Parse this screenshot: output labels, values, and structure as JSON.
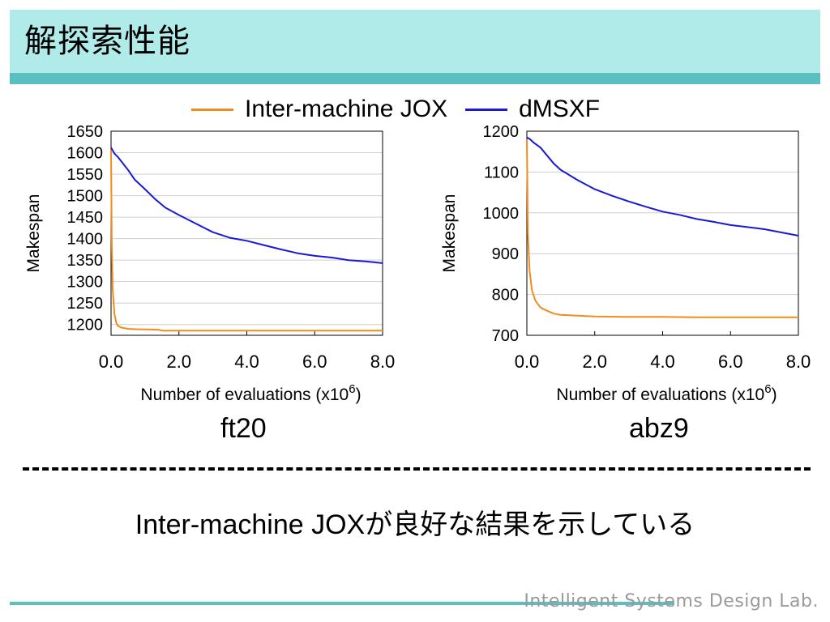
{
  "slide": {
    "title": "解探索性能",
    "conclusion": "Inter-machine JOXが良好な結果を示している",
    "footer": "Intelligent Systems Design Lab."
  },
  "legend": {
    "items": [
      {
        "label": "Inter-machine JOX",
        "color": "#f28c1c"
      },
      {
        "label": "dMSXF",
        "color": "#1a1ad6"
      }
    ]
  },
  "chart_data": [
    {
      "type": "line",
      "dataset_label": "ft20",
      "xlabel": "Number of evaluations (x10",
      "xlabel_sup": "6",
      "xlabel_tail": ")",
      "ylabel": "Makespan",
      "xlim": [
        0,
        8
      ],
      "ylim": [
        1175,
        1650
      ],
      "xticks": [
        "0.0",
        "2.0",
        "4.0",
        "6.0",
        "8.0"
      ],
      "xtick_values": [
        0,
        2,
        4,
        6,
        8
      ],
      "yticks": [
        "1200",
        "1250",
        "1300",
        "1350",
        "1400",
        "1450",
        "1500",
        "1550",
        "1600",
        "1650"
      ],
      "ytick_values": [
        1200,
        1250,
        1300,
        1350,
        1400,
        1450,
        1500,
        1550,
        1600,
        1650
      ],
      "grid": "horizontal",
      "series": [
        {
          "name": "Inter-machine JOX",
          "color": "#f28c1c",
          "x": [
            0,
            0.02,
            0.05,
            0.1,
            0.15,
            0.2,
            0.3,
            0.5,
            0.8,
            1.0,
            1.4,
            1.5,
            2.0,
            3.0,
            4.0,
            5.0,
            6.0,
            7.0,
            8.0
          ],
          "y": [
            1610,
            1400,
            1280,
            1225,
            1205,
            1197,
            1193,
            1190,
            1189,
            1189,
            1188,
            1186,
            1186,
            1186,
            1186,
            1186,
            1186,
            1186,
            1186
          ]
        },
        {
          "name": "dMSXF",
          "color": "#1a1ad6",
          "x": [
            0,
            0.05,
            0.1,
            0.2,
            0.3,
            0.5,
            0.7,
            1.0,
            1.3,
            1.6,
            2.0,
            2.5,
            3.0,
            3.5,
            4.0,
            4.5,
            5.0,
            5.5,
            6.0,
            6.5,
            7.0,
            7.5,
            8.0
          ],
          "y": [
            1612,
            1605,
            1598,
            1590,
            1580,
            1560,
            1537,
            1515,
            1492,
            1472,
            1455,
            1435,
            1415,
            1402,
            1395,
            1385,
            1375,
            1366,
            1360,
            1356,
            1350,
            1347,
            1343
          ]
        }
      ]
    },
    {
      "type": "line",
      "dataset_label": "abz9",
      "xlabel": "Number of evaluations (x10",
      "xlabel_sup": "6",
      "xlabel_tail": ")",
      "ylabel": "Makespan",
      "xlim": [
        0,
        8
      ],
      "ylim": [
        700,
        1200
      ],
      "xticks": [
        "0.0",
        "2.0",
        "4.0",
        "6.0",
        "8.0"
      ],
      "xtick_values": [
        0,
        2,
        4,
        6,
        8
      ],
      "yticks": [
        "700",
        "800",
        "900",
        "1000",
        "1100",
        "1200"
      ],
      "ytick_values": [
        700,
        800,
        900,
        1000,
        1100,
        1200
      ],
      "grid": "horizontal",
      "series": [
        {
          "name": "Inter-machine JOX",
          "color": "#f28c1c",
          "x": [
            0,
            0.03,
            0.08,
            0.15,
            0.25,
            0.4,
            0.6,
            0.8,
            1.0,
            1.5,
            2.0,
            3.0,
            4.0,
            5.0,
            6.0,
            7.0,
            8.0
          ],
          "y": [
            1180,
            950,
            860,
            810,
            785,
            768,
            760,
            753,
            750,
            748,
            746,
            745,
            745,
            744,
            744,
            744,
            744
          ]
        },
        {
          "name": "dMSXF",
          "color": "#1a1ad6",
          "x": [
            0,
            0.1,
            0.2,
            0.4,
            0.6,
            0.8,
            1.0,
            1.2,
            1.5,
            2.0,
            2.5,
            3.0,
            3.5,
            4.0,
            4.5,
            5.0,
            5.5,
            6.0,
            6.5,
            7.0,
            7.5,
            8.0
          ],
          "y": [
            1185,
            1180,
            1172,
            1160,
            1140,
            1120,
            1105,
            1095,
            1080,
            1058,
            1042,
            1028,
            1015,
            1003,
            995,
            985,
            978,
            970,
            965,
            960,
            952,
            944
          ]
        }
      ]
    }
  ]
}
